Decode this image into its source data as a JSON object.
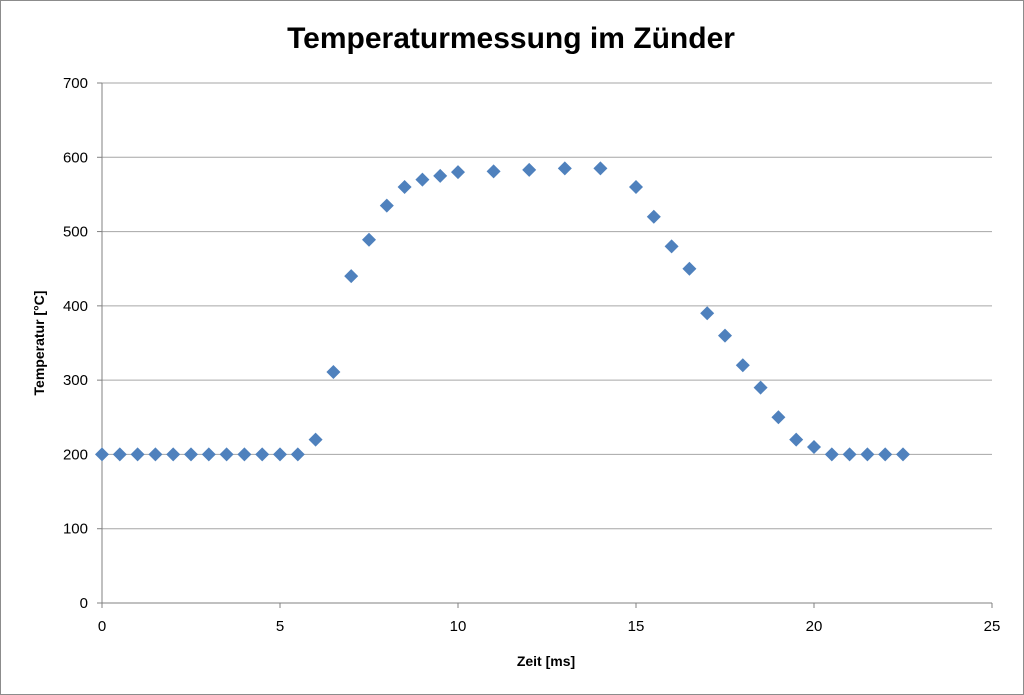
{
  "chart_data": {
    "type": "scatter",
    "title": "Temperaturmessung  im Zünder",
    "xlabel": "Zeit [ms]",
    "ylabel": "Temperatur [°C]",
    "xlim": [
      0,
      25
    ],
    "ylim": [
      0,
      700
    ],
    "xticks": [
      0,
      5,
      10,
      15,
      20,
      25
    ],
    "yticks": [
      0,
      100,
      200,
      300,
      400,
      500,
      600,
      700
    ],
    "grid": "horizontal",
    "marker": "diamond",
    "color": "#4f81bd",
    "series": [
      {
        "x": [
          0,
          0.5,
          1,
          1.5,
          2,
          2.5,
          3,
          3.5,
          4,
          4.5,
          5,
          5.5,
          6,
          6.5,
          7,
          7.5,
          8,
          8.5,
          9,
          9.5,
          10,
          11,
          12,
          13,
          14,
          15,
          15.5,
          16,
          16.5,
          17,
          17.5,
          18,
          18.5,
          19,
          19.5,
          20,
          20.5,
          21,
          21.5,
          22,
          22.5
        ],
        "y": [
          200,
          200,
          200,
          200,
          200,
          200,
          200,
          200,
          200,
          200,
          200,
          200,
          220,
          311,
          440,
          489,
          535,
          560,
          570,
          575,
          580,
          581,
          583,
          585,
          585,
          560,
          520,
          480,
          450,
          390,
          360,
          320,
          290,
          250,
          220,
          210,
          200,
          200,
          200,
          200,
          200
        ]
      }
    ]
  }
}
